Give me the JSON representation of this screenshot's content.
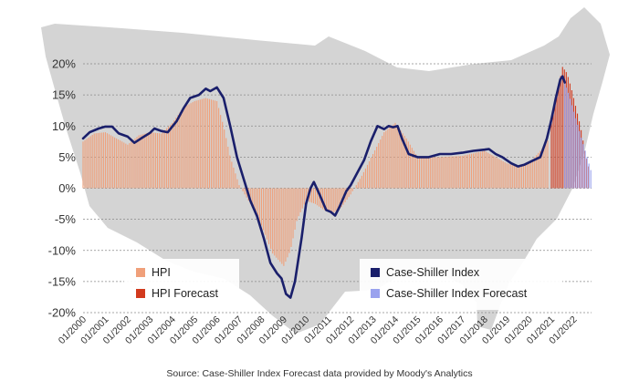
{
  "chart_data": {
    "type": "bar+line",
    "source": "Source: Case-Shiller Index Forecast data provided by Moody's Analytics",
    "y_ticks": [
      "20%",
      "15%",
      "10%",
      "5%",
      "0%",
      "-5%",
      "-10%",
      "-15%",
      "-20%"
    ],
    "y_tick_values": [
      20,
      15,
      10,
      5,
      0,
      -5,
      -10,
      -15,
      -20
    ],
    "ylim": [
      -20,
      20
    ],
    "x_ticks": [
      "01/2000",
      "01/2001",
      "01/2002",
      "01/2003",
      "01/2004",
      "01/2005",
      "01/2006",
      "01/2007",
      "01/2008",
      "01/2009",
      "01/2010",
      "01/2011",
      "01/2012",
      "01/2013",
      "01/2014",
      "01/2015",
      "01/2016",
      "01/2017",
      "01/2018",
      "01/2019",
      "01/2020",
      "01/2021",
      "01/2022"
    ],
    "x_tick_years": [
      2000,
      2001,
      2002,
      2003,
      2004,
      2005,
      2006,
      2007,
      2008,
      2009,
      2010,
      2011,
      2012,
      2013,
      2014,
      2015,
      2016,
      2017,
      2018,
      2019,
      2020,
      2021,
      2022
    ],
    "xlim": [
      2000,
      2022.8
    ],
    "grid": "horizontal dotted",
    "legend": {
      "left": [
        {
          "label": "HPI",
          "color": "#f0a07a"
        },
        {
          "label": "HPI Forecast",
          "color": "#d23a1e"
        }
      ],
      "right": [
        {
          "label": "Case-Shiller Index",
          "color": "#1a1f6b"
        },
        {
          "label": "Case-Shiller Index Forecast",
          "color": "#9aa2ee"
        }
      ]
    },
    "series": [
      {
        "name": "HPI",
        "type": "bar",
        "color": "#f0a07a",
        "points": [
          [
            2000.0,
            7.5
          ],
          [
            2000.5,
            8.8
          ],
          [
            2001.0,
            9.0
          ],
          [
            2001.5,
            8.0
          ],
          [
            2002.0,
            7.0
          ],
          [
            2002.5,
            8.5
          ],
          [
            2003.0,
            9.0
          ],
          [
            2003.5,
            8.8
          ],
          [
            2004.0,
            10.5
          ],
          [
            2004.5,
            13.0
          ],
          [
            2005.0,
            14.0
          ],
          [
            2005.5,
            14.5
          ],
          [
            2006.0,
            14.0
          ],
          [
            2006.3,
            10.0
          ],
          [
            2006.6,
            5.0
          ],
          [
            2007.0,
            0.5
          ],
          [
            2007.5,
            -2.5
          ],
          [
            2008.0,
            -6.0
          ],
          [
            2008.5,
            -10.5
          ],
          [
            2009.0,
            -12.5
          ],
          [
            2009.3,
            -10.0
          ],
          [
            2009.6,
            -5.0
          ],
          [
            2010.0,
            -2.0
          ],
          [
            2010.4,
            -2.5
          ],
          [
            2010.8,
            -3.5
          ],
          [
            2011.2,
            -4.0
          ],
          [
            2011.6,
            -3.0
          ],
          [
            2012.0,
            -1.0
          ],
          [
            2012.5,
            2.0
          ],
          [
            2013.0,
            5.5
          ],
          [
            2013.5,
            9.0
          ],
          [
            2014.0,
            10.5
          ],
          [
            2014.5,
            8.0
          ],
          [
            2015.0,
            5.0
          ],
          [
            2016.0,
            5.0
          ],
          [
            2017.0,
            5.2
          ],
          [
            2018.0,
            6.0
          ],
          [
            2018.5,
            5.0
          ],
          [
            2019.0,
            4.0
          ],
          [
            2019.5,
            3.5
          ],
          [
            2020.0,
            4.0
          ],
          [
            2020.5,
            6.0
          ],
          [
            2020.9,
            8.0
          ]
        ]
      },
      {
        "name": "HPI Forecast",
        "type": "bar",
        "color": "#d23a1e",
        "points": [
          [
            2021.0,
            11.0
          ],
          [
            2021.3,
            16.0
          ],
          [
            2021.5,
            19.5
          ],
          [
            2021.7,
            18.5
          ],
          [
            2021.9,
            16.0
          ],
          [
            2022.1,
            13.0
          ],
          [
            2022.3,
            10.0
          ],
          [
            2022.5,
            6.0
          ],
          [
            2022.7,
            3.0
          ]
        ]
      },
      {
        "name": "Case-Shiller Index",
        "type": "line",
        "color": "#1a1f6b",
        "points": [
          [
            2000.0,
            8.0
          ],
          [
            2000.3,
            9.0
          ],
          [
            2000.7,
            9.6
          ],
          [
            2001.0,
            9.9
          ],
          [
            2001.3,
            9.9
          ],
          [
            2001.6,
            8.8
          ],
          [
            2002.0,
            8.3
          ],
          [
            2002.3,
            7.3
          ],
          [
            2002.6,
            8.0
          ],
          [
            2003.0,
            8.9
          ],
          [
            2003.2,
            9.6
          ],
          [
            2003.5,
            9.2
          ],
          [
            2003.8,
            9.0
          ],
          [
            2004.2,
            10.8
          ],
          [
            2004.5,
            12.8
          ],
          [
            2004.8,
            14.5
          ],
          [
            2005.2,
            15.0
          ],
          [
            2005.5,
            16.0
          ],
          [
            2005.7,
            15.6
          ],
          [
            2006.0,
            16.2
          ],
          [
            2006.3,
            14.5
          ],
          [
            2006.6,
            10.0
          ],
          [
            2006.9,
            5.0
          ],
          [
            2007.2,
            1.5
          ],
          [
            2007.5,
            -2.0
          ],
          [
            2007.8,
            -4.5
          ],
          [
            2008.1,
            -8.0
          ],
          [
            2008.4,
            -12.0
          ],
          [
            2008.7,
            -13.7
          ],
          [
            2008.9,
            -14.5
          ],
          [
            2009.1,
            -17.0
          ],
          [
            2009.3,
            -17.6
          ],
          [
            2009.5,
            -15.0
          ],
          [
            2009.8,
            -8.0
          ],
          [
            2010.0,
            -2.5
          ],
          [
            2010.2,
            0.0
          ],
          [
            2010.35,
            1.0
          ],
          [
            2010.6,
            -1.0
          ],
          [
            2010.9,
            -3.5
          ],
          [
            2011.1,
            -3.8
          ],
          [
            2011.3,
            -4.4
          ],
          [
            2011.5,
            -3.0
          ],
          [
            2011.8,
            -0.5
          ],
          [
            2012.0,
            0.5
          ],
          [
            2012.3,
            2.5
          ],
          [
            2012.6,
            4.5
          ],
          [
            2012.9,
            7.5
          ],
          [
            2013.2,
            10.0
          ],
          [
            2013.5,
            9.5
          ],
          [
            2013.7,
            10.0
          ],
          [
            2013.9,
            9.8
          ],
          [
            2014.1,
            10.0
          ],
          [
            2014.3,
            8.0
          ],
          [
            2014.6,
            5.5
          ],
          [
            2015.0,
            5.0
          ],
          [
            2015.5,
            5.0
          ],
          [
            2016.0,
            5.5
          ],
          [
            2016.5,
            5.5
          ],
          [
            2017.0,
            5.7
          ],
          [
            2017.5,
            6.0
          ],
          [
            2018.0,
            6.2
          ],
          [
            2018.2,
            6.3
          ],
          [
            2018.5,
            5.5
          ],
          [
            2018.8,
            5.0
          ],
          [
            2019.2,
            4.0
          ],
          [
            2019.5,
            3.5
          ],
          [
            2019.8,
            3.8
          ],
          [
            2020.2,
            4.5
          ],
          [
            2020.5,
            5.0
          ],
          [
            2020.8,
            8.0
          ],
          [
            2021.0,
            11.0
          ],
          [
            2021.2,
            14.5
          ],
          [
            2021.4,
            17.5
          ],
          [
            2021.5,
            18.0
          ],
          [
            2021.6,
            17.0
          ]
        ]
      },
      {
        "name": "Case-Shiller Index Forecast",
        "type": "bar",
        "color": "#9aa2ee",
        "points": [
          [
            2021.6,
            17.0
          ],
          [
            2021.8,
            15.0
          ],
          [
            2022.0,
            12.5
          ],
          [
            2022.2,
            10.0
          ],
          [
            2022.4,
            7.5
          ],
          [
            2022.6,
            5.0
          ],
          [
            2022.8,
            2.5
          ]
        ]
      }
    ]
  }
}
